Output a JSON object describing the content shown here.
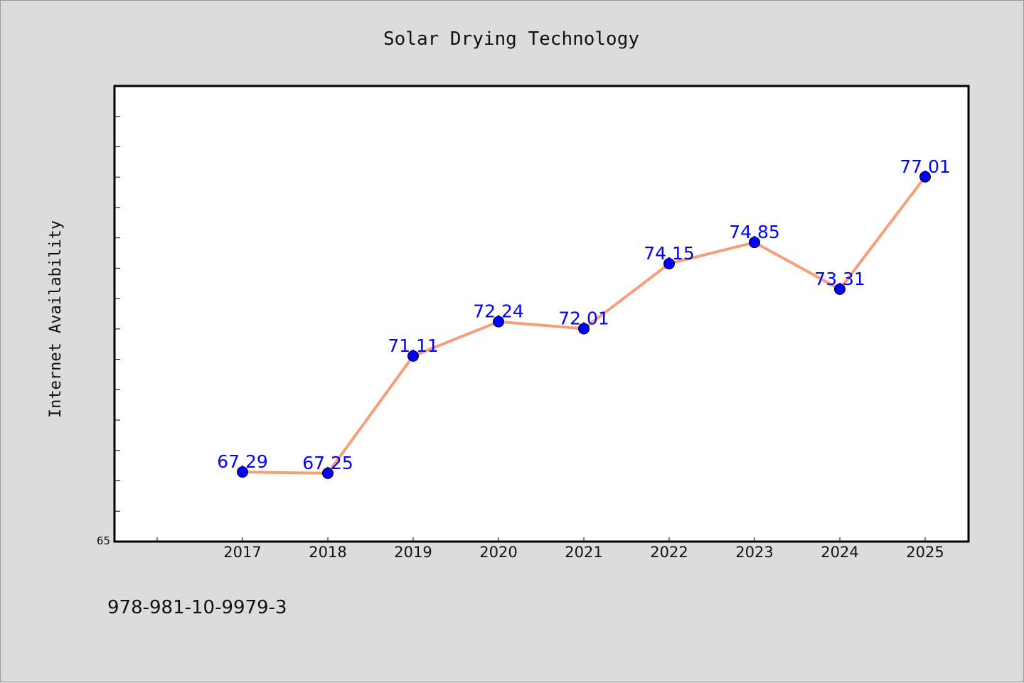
{
  "chart_data": {
    "type": "line",
    "title": "Solar Drying Technology",
    "ylabel": "Internet Availability",
    "xlabel": "",
    "categories": [
      "2017",
      "2018",
      "2019",
      "2020",
      "2021",
      "2022",
      "2023",
      "2024",
      "2025"
    ],
    "values": [
      67.29,
      67.25,
      71.11,
      72.24,
      72.01,
      74.15,
      74.85,
      73.31,
      77.01
    ],
    "data_labels": [
      "67.29",
      "67.25",
      "71.11",
      "72.24",
      "72.01",
      "74.15",
      "74.85",
      "73.31",
      "77.01"
    ],
    "ylim": [
      65,
      80
    ],
    "y_tick_labels": [
      "65"
    ],
    "grid": false,
    "line_color": "#f4a07a",
    "marker_color": "#0000ff",
    "label_color": "#0000ff"
  },
  "footer": {
    "isbn": "978-981-10-9979-3"
  }
}
